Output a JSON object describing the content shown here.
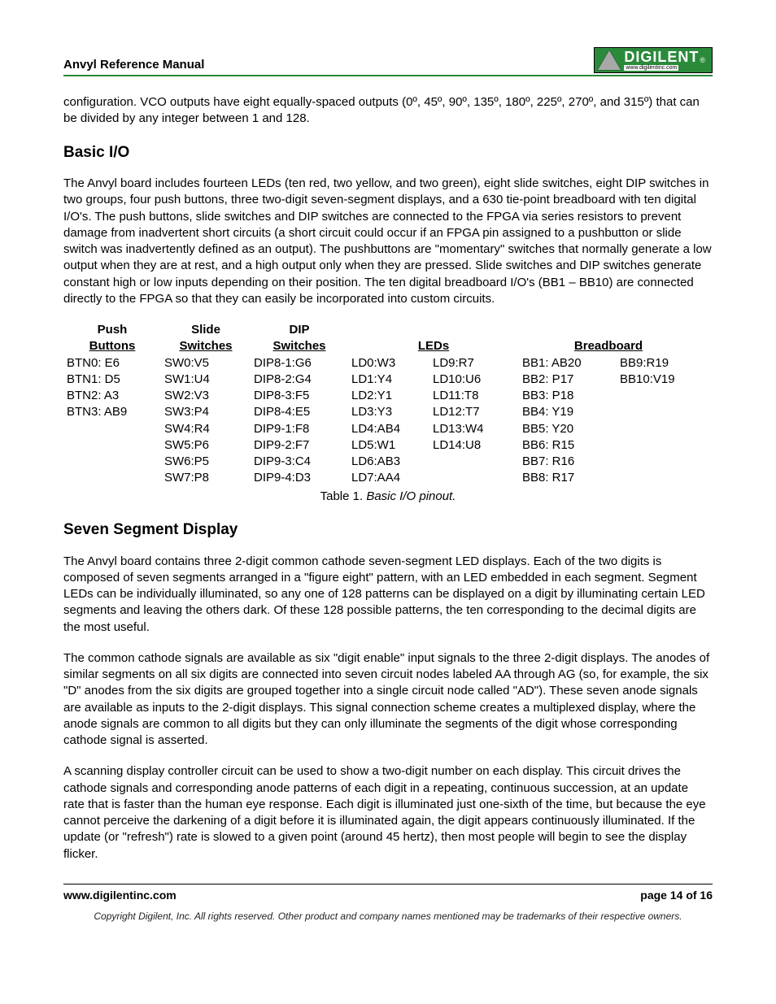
{
  "header": {
    "title": "Anvyl Reference Manual",
    "logo_main": "DIGILENT",
    "logo_sub": "www.digilentinc.com",
    "logo_r": "®"
  },
  "intro_para": "configuration. VCO outputs have eight equally-spaced outputs (0º, 45º, 90º, 135º, 180º, 225º, 270º, and 315º) that can be divided by any integer between 1 and 128.",
  "h_basic_io": "Basic I/O",
  "basic_io_para": "The Anvyl board includes fourteen LEDs (ten red, two yellow, and two green), eight slide switches, eight DIP switches in two groups, four push buttons, three two-digit seven-segment displays, and a 630 tie-point breadboard with ten digital I/O's. The push buttons, slide switches and DIP switches are connected to the FPGA via series resistors to prevent damage from inadvertent short circuits (a short circuit could occur if an FPGA pin assigned to a pushbutton or slide switch was inadvertently defined as an output). The pushbuttons are \"momentary\" switches that normally generate a low output when they are at rest, and a high output only when they are pressed. Slide switches and DIP switches generate constant high or low inputs depending on their position. The ten digital breadboard I/O's (BB1 – BB10) are connected directly to the FPGA so that they can easily be incorporated into custom circuits.",
  "table": {
    "hdr_push1": "Push",
    "hdr_push2": "Buttons",
    "hdr_slide1": "Slide",
    "hdr_slide2": "Switches",
    "hdr_dip1": "DIP",
    "hdr_dip2": "Switches",
    "hdr_leds": "LEDs",
    "hdr_bb": "Breadboard",
    "push": [
      "BTN0: E6",
      "BTN1: D5",
      "BTN2: A3",
      "BTN3: AB9"
    ],
    "slide": [
      "SW0:V5",
      "SW1:U4",
      "SW2:V3",
      "SW3:P4",
      "SW4:R4",
      "SW5:P6",
      "SW6:P5",
      "SW7:P8"
    ],
    "dip": [
      "DIP8-1:G6",
      "DIP8-2:G4",
      "DIP8-3:F5",
      "DIP8-4:E5",
      "DIP9-1:F8",
      "DIP9-2:F7",
      "DIP9-3:C4",
      "DIP9-4:D3"
    ],
    "led1": [
      "LD0:W3",
      "LD1:Y4",
      "LD2:Y1",
      "LD3:Y3",
      "LD4:AB4",
      "LD5:W1",
      "LD6:AB3",
      "LD7:AA4"
    ],
    "led2": [
      "LD9:R7",
      "LD10:U6",
      "LD11:T8",
      "LD12:T7",
      "LD13:W4",
      "LD14:U8"
    ],
    "bb1": [
      "BB1: AB20",
      "BB2: P17",
      "BB3: P18",
      "BB4: Y19",
      "BB5: Y20",
      "BB6: R15",
      "BB7: R16",
      "BB8: R17"
    ],
    "bb2": [
      "BB9:R19",
      "BB10:V19"
    ],
    "caption_label": "Table 1. ",
    "caption_text": "Basic I/O pinout."
  },
  "h_seven": "Seven Segment Display",
  "seven_p1": "The Anvyl board contains three 2-digit common cathode seven-segment LED displays. Each of the two digits is composed of seven segments arranged in a \"figure eight\" pattern, with an LED embedded in each segment. Segment LEDs can be individually illuminated, so any one of 128 patterns can be displayed on a digit by illuminating certain LED segments and leaving the others dark. Of these 128 possible patterns, the ten corresponding to the decimal digits are the most useful.",
  "seven_p2": "The common cathode signals are available as six \"digit enable\" input signals to the three 2-digit displays. The anodes of similar segments on all six digits are connected into seven circuit nodes labeled AA through AG (so, for example, the six \"D\" anodes from the six digits are grouped together into a single circuit node called \"AD\"). These seven anode signals are available as inputs to the 2-digit displays. This signal connection scheme creates a multiplexed display, where the anode signals are common to all digits but they can only illuminate the segments of the digit whose corresponding cathode signal is asserted.",
  "seven_p3": "A scanning display controller circuit can be used to show a two-digit number on each display. This circuit drives the cathode signals and corresponding anode patterns of each digit in a repeating, continuous succession, at an update rate that is faster than the human eye response. Each digit is illuminated just one-sixth of the time, but because the eye cannot perceive the darkening of a digit before it is illuminated again, the digit appears continuously illuminated. If the update (or \"refresh\") rate is slowed to a given point (around 45 hertz), then most people will begin to see the display flicker.",
  "footer": {
    "url": "www.digilentinc.com",
    "page": "page 14 of 16",
    "copyright": "Copyright Digilent, Inc. All rights reserved. Other product and company names mentioned may be trademarks of their respective owners."
  }
}
